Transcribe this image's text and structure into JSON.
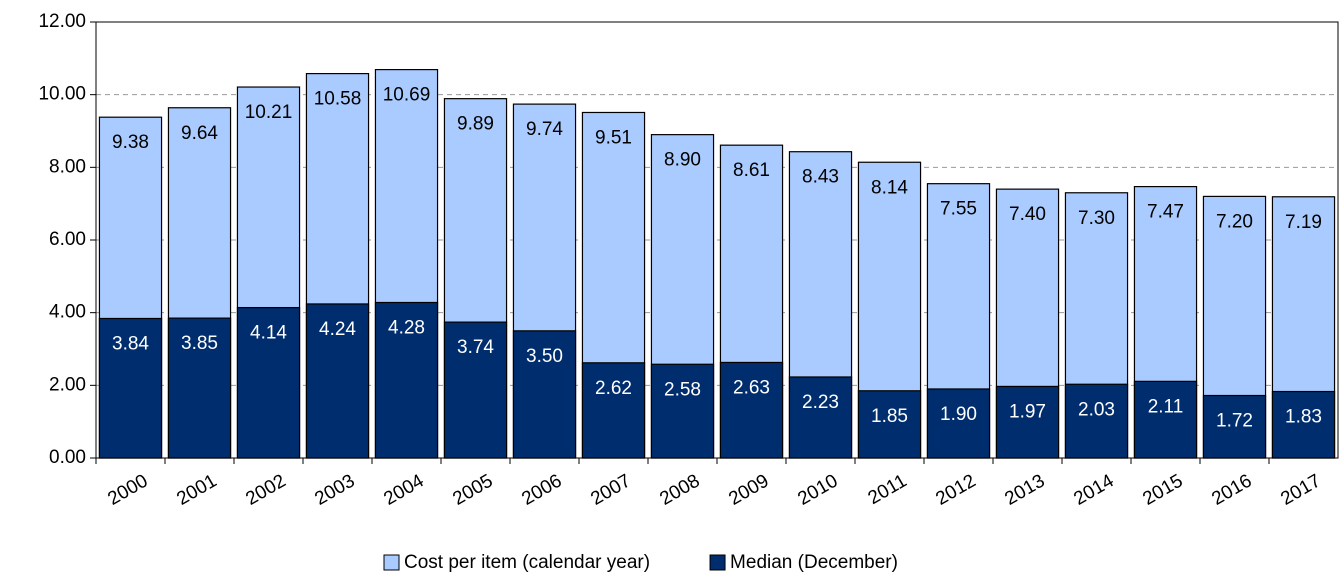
{
  "chart_data": {
    "type": "bar",
    "overlap": true,
    "categories": [
      "2000",
      "2001",
      "2002",
      "2003",
      "2004",
      "2005",
      "2006",
      "2007",
      "2008",
      "2009",
      "2010",
      "2011",
      "2012",
      "2013",
      "2014",
      "2015",
      "2016",
      "2017"
    ],
    "series": [
      {
        "name": "Cost per item (calendar year)",
        "color": "#a9cbff",
        "label_color": "#000000",
        "values": [
          9.38,
          9.64,
          10.21,
          10.58,
          10.69,
          9.89,
          9.74,
          9.51,
          8.9,
          8.61,
          8.43,
          8.14,
          7.55,
          7.4,
          7.3,
          7.47,
          7.2,
          7.19
        ],
        "value_labels": [
          "9.38",
          "9.64",
          "10.21",
          "10.58",
          "10.69",
          "9.89",
          "9.74",
          "9.51",
          "8.90",
          "8.61",
          "8.43",
          "8.14",
          "7.55",
          "7.40",
          "7.30",
          "7.47",
          "7.20",
          "7.19"
        ]
      },
      {
        "name": "Median (December)",
        "color": "#002d6e",
        "label_color": "#ffffff",
        "values": [
          3.84,
          3.85,
          4.14,
          4.24,
          4.28,
          3.74,
          3.5,
          2.62,
          2.58,
          2.63,
          2.23,
          1.85,
          1.9,
          1.97,
          2.03,
          2.11,
          1.72,
          1.83
        ],
        "value_labels": [
          "3.84",
          "3.85",
          "4.14",
          "4.24",
          "4.28",
          "3.74",
          "3.50",
          "2.62",
          "2.58",
          "2.63",
          "2.23",
          "1.85",
          "1.90",
          "1.97",
          "2.03",
          "2.11",
          "1.72",
          "1.83"
        ]
      }
    ],
    "ylim": [
      0,
      12
    ],
    "yticks": [
      {
        "value": 0,
        "label": "0.00"
      },
      {
        "value": 2,
        "label": "2.00"
      },
      {
        "value": 4,
        "label": "4.00"
      },
      {
        "value": 6,
        "label": "6.00"
      },
      {
        "value": 8,
        "label": "8.00"
      },
      {
        "value": 10,
        "label": "10.00"
      },
      {
        "value": 12,
        "label": "12.00"
      }
    ],
    "grid": true,
    "legend": "bottom"
  }
}
